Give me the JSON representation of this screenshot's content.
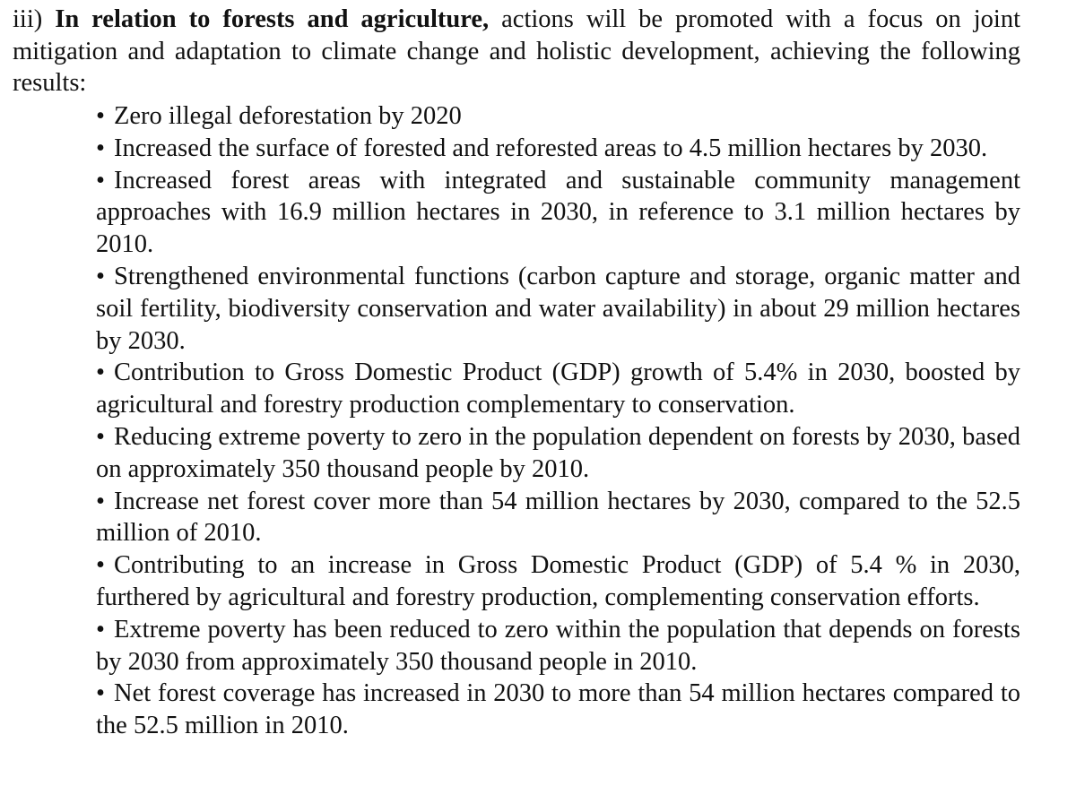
{
  "document": {
    "intro_prefix": "iii) ",
    "intro_bold": "In relation to forests and agriculture,",
    "intro_rest": " actions will be promoted with a focus on joint mitigation and adaptation to climate change and holistic development, achieving the following results:",
    "bullet_symbol": "•",
    "results": [
      "Zero illegal deforestation by 2020",
      "Increased the surface of forested and reforested areas to 4.5 million hectares by 2030.",
      "Increased forest areas with integrated and sustainable community management approaches with 16.9 million hectares in 2030, in reference to 3.1 million hectares by 2010.",
      "Strengthened environmental functions (carbon capture and storage, organic matter and soil fertility, biodiversity conservation and water availability) in about 29 million hectares by 2030.",
      "Contribution to Gross Domestic Product (GDP) growth of 5.4% in 2030, boosted by agricultural and forestry production complementary to conservation.",
      "Reducing extreme poverty to zero in the population dependent on forests by 2030, based on approximately 350 thousand people by 2010.",
      "Increase net forest cover more than 54 million hectares by 2030, compared to the 52.5 million of 2010.",
      "Contributing to an increase in Gross Domestic Product (GDP) of 5.4 % in 2030, furthered by agricultural and forestry production, complementing conservation efforts.",
      "Extreme poverty has been reduced to zero within the population that depends on forests by 2030 from approximately 350 thousand people in 2010.",
      "Net forest coverage has increased in 2030 to more than 54 million hectares compared to the 52.5 million in 2010."
    ]
  }
}
